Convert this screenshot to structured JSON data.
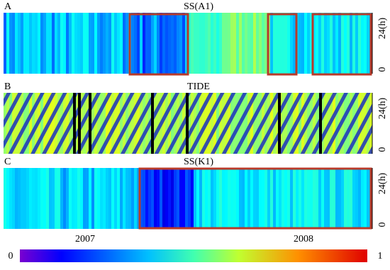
{
  "panels": [
    {
      "letter": "A",
      "title": "SS(A1)",
      "y_top": "24(h)",
      "y_bottom": "0"
    },
    {
      "letter": "B",
      "title": "TIDE",
      "y_top": "24(h)",
      "y_bottom": "0"
    },
    {
      "letter": "C",
      "title": "SS(K1)",
      "y_top": "24(h)",
      "y_bottom": "0"
    }
  ],
  "x_labels": [
    "2007",
    "2008"
  ],
  "colorbar": {
    "min": 0,
    "max": 1
  }
}
